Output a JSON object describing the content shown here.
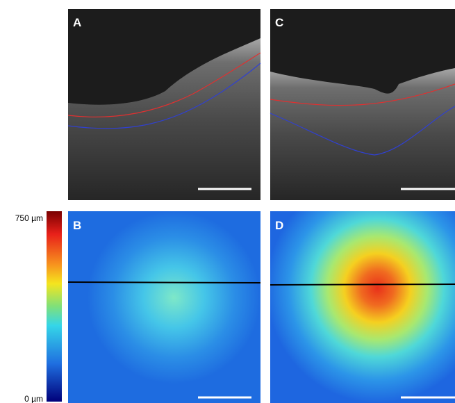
{
  "colorbar": {
    "max_label": "750 µm",
    "min_label": "0 µm"
  },
  "panels": [
    {
      "label": "A"
    },
    {
      "label": "B"
    },
    {
      "label": "C"
    },
    {
      "label": "D"
    }
  ]
}
